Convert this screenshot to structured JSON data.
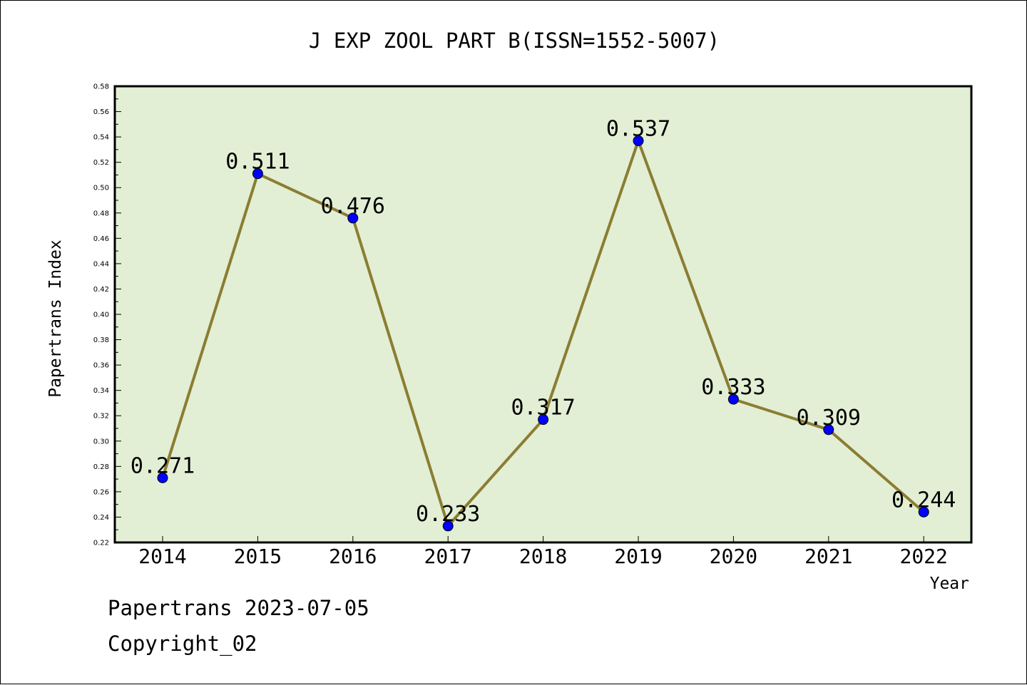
{
  "chart_data": {
    "type": "line",
    "title": "J EXP ZOOL PART B(ISSN=1552-5007)",
    "xlabel": "Year",
    "ylabel": "Papertrans Index",
    "categories": [
      "2014",
      "2015",
      "2016",
      "2017",
      "2018",
      "2019",
      "2020",
      "2021",
      "2022"
    ],
    "series": [
      {
        "values": [
          0.271,
          0.511,
          0.476,
          0.233,
          0.317,
          0.537,
          0.333,
          0.309,
          0.244
        ],
        "data_labels": [
          "0.271",
          "0.511",
          "0.476",
          "0.233",
          "0.317",
          "0.537",
          "0.333",
          "0.309",
          "0.244"
        ]
      }
    ],
    "ylim": [
      0.22,
      0.58
    ],
    "yticks": [
      "0.22",
      "0.24",
      "0.26",
      "0.28",
      "0.30",
      "0.32",
      "0.34",
      "0.36",
      "0.38",
      "0.40",
      "0.42",
      "0.44",
      "0.46",
      "0.48",
      "0.50",
      "0.52",
      "0.54",
      "0.56",
      "0.58"
    ],
    "grid": false,
    "colors": {
      "plot_background": "#e2efd5",
      "line": "#8b7d32",
      "marker": "#0000ff"
    }
  },
  "footer": {
    "line1": "Papertrans 2023-07-05",
    "line2": "Copyright_02"
  }
}
